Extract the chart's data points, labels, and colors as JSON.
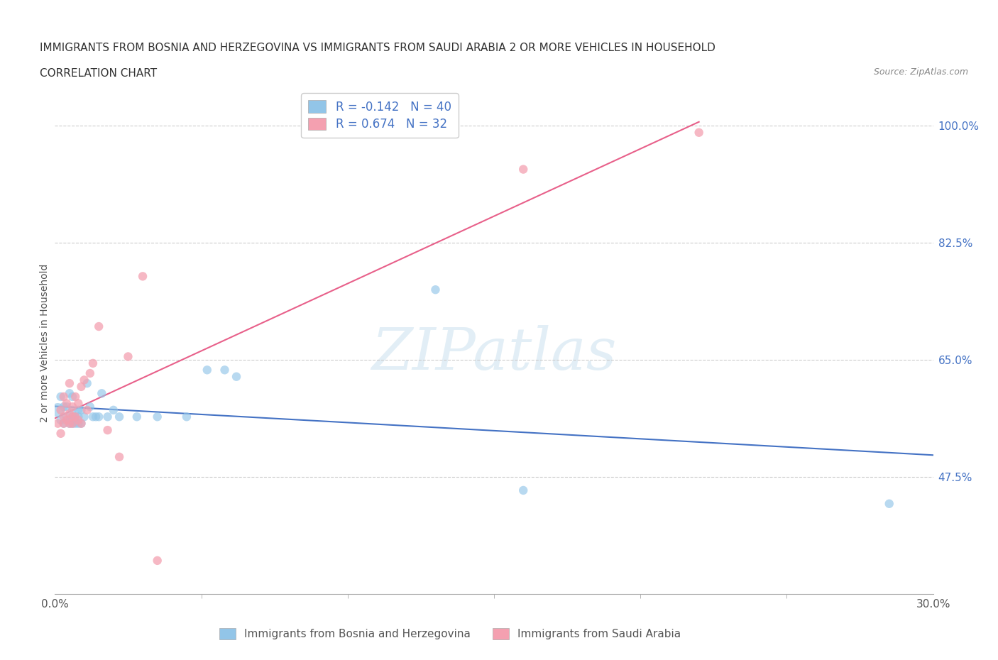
{
  "title_line1": "IMMIGRANTS FROM BOSNIA AND HERZEGOVINA VS IMMIGRANTS FROM SAUDI ARABIA 2 OR MORE VEHICLES IN HOUSEHOLD",
  "title_line2": "CORRELATION CHART",
  "source": "Source: ZipAtlas.com",
  "ylabel": "2 or more Vehicles in Household",
  "xlim": [
    0.0,
    0.3
  ],
  "ylim": [
    0.3,
    1.05
  ],
  "right_yticks": [
    0.475,
    0.65,
    0.825,
    1.0
  ],
  "right_yticklabels": [
    "47.5%",
    "65.0%",
    "82.5%",
    "100.0%"
  ],
  "hlines": [
    0.475,
    0.65,
    0.825,
    1.0
  ],
  "bosnia_color": "#92C5E8",
  "saudi_color": "#F4A0B0",
  "bosnia_line_color": "#4472C4",
  "saudi_line_color": "#E8608A",
  "legend_bosnia_R": "-0.142",
  "legend_bosnia_N": "40",
  "legend_saudi_R": "0.674",
  "legend_saudi_N": "32",
  "watermark": "ZIPatlas",
  "bosnia_scatter_x": [
    0.001,
    0.002,
    0.002,
    0.003,
    0.003,
    0.004,
    0.004,
    0.005,
    0.005,
    0.005,
    0.006,
    0.006,
    0.006,
    0.006,
    0.007,
    0.007,
    0.008,
    0.008,
    0.008,
    0.009,
    0.009,
    0.01,
    0.011,
    0.012,
    0.013,
    0.014,
    0.015,
    0.016,
    0.018,
    0.02,
    0.022,
    0.028,
    0.035,
    0.045,
    0.052,
    0.058,
    0.062,
    0.13,
    0.16,
    0.285
  ],
  "bosnia_scatter_y": [
    0.575,
    0.56,
    0.595,
    0.555,
    0.58,
    0.565,
    0.58,
    0.555,
    0.56,
    0.6,
    0.555,
    0.565,
    0.575,
    0.595,
    0.555,
    0.565,
    0.555,
    0.565,
    0.575,
    0.555,
    0.575,
    0.565,
    0.615,
    0.58,
    0.565,
    0.565,
    0.565,
    0.6,
    0.565,
    0.575,
    0.565,
    0.565,
    0.565,
    0.565,
    0.635,
    0.635,
    0.625,
    0.755,
    0.455,
    0.435
  ],
  "bosnia_scatter_size": [
    200,
    80,
    80,
    80,
    80,
    80,
    80,
    80,
    80,
    80,
    80,
    80,
    80,
    80,
    80,
    80,
    80,
    80,
    80,
    80,
    80,
    80,
    80,
    80,
    80,
    80,
    80,
    80,
    80,
    80,
    80,
    80,
    80,
    80,
    80,
    80,
    80,
    80,
    80,
    80
  ],
  "saudi_scatter_x": [
    0.001,
    0.002,
    0.002,
    0.003,
    0.003,
    0.003,
    0.004,
    0.004,
    0.005,
    0.005,
    0.005,
    0.006,
    0.006,
    0.006,
    0.007,
    0.007,
    0.008,
    0.008,
    0.009,
    0.009,
    0.01,
    0.011,
    0.012,
    0.013,
    0.015,
    0.018,
    0.022,
    0.025,
    0.03,
    0.035,
    0.16,
    0.22
  ],
  "saudi_scatter_y": [
    0.555,
    0.54,
    0.575,
    0.555,
    0.565,
    0.595,
    0.56,
    0.585,
    0.555,
    0.57,
    0.615,
    0.555,
    0.565,
    0.58,
    0.565,
    0.595,
    0.56,
    0.585,
    0.555,
    0.61,
    0.62,
    0.575,
    0.63,
    0.645,
    0.7,
    0.545,
    0.505,
    0.655,
    0.775,
    0.35,
    0.935,
    0.99
  ],
  "saudi_scatter_size": [
    80,
    80,
    80,
    80,
    80,
    80,
    80,
    80,
    80,
    80,
    80,
    80,
    80,
    80,
    80,
    80,
    80,
    80,
    80,
    80,
    80,
    80,
    80,
    80,
    80,
    80,
    80,
    80,
    80,
    80,
    80,
    80
  ]
}
